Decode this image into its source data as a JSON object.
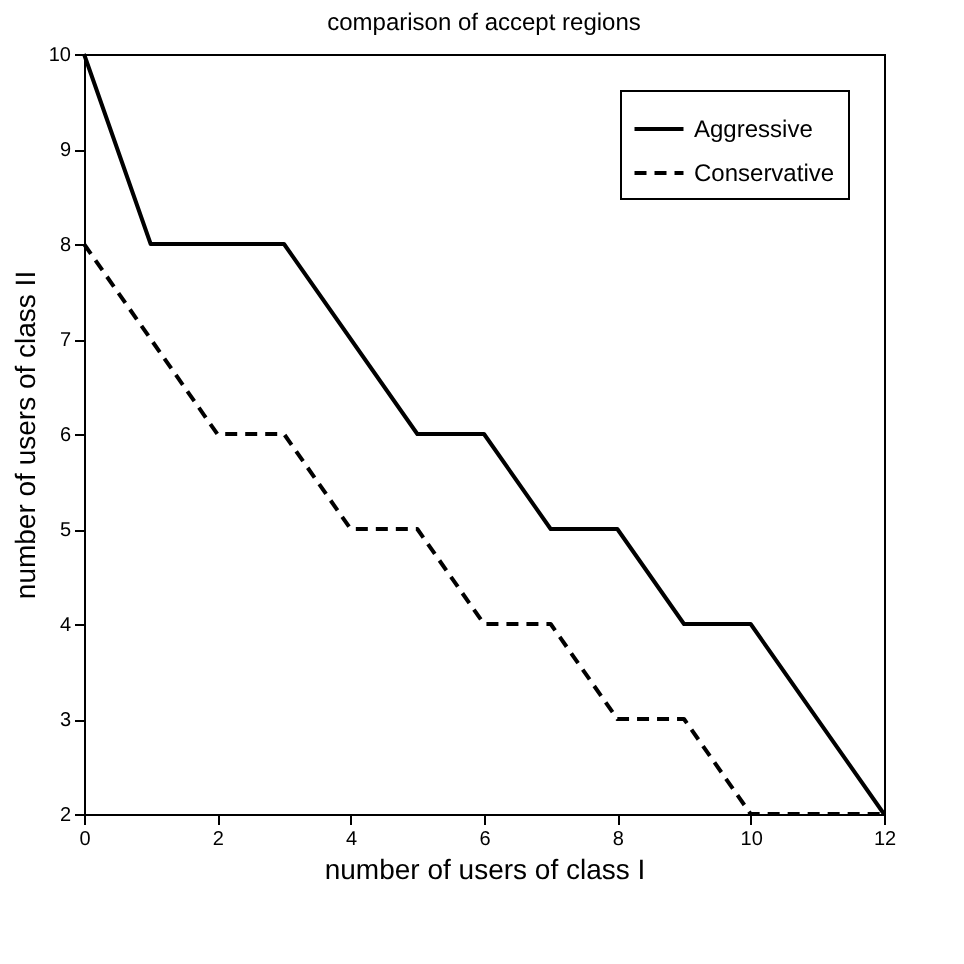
{
  "chart_data": {
    "type": "line",
    "title": "comparison of accept regions",
    "xlabel": "number of users of class I",
    "ylabel": "number of users of class II",
    "xlim": [
      0,
      12
    ],
    "xticks": [
      0,
      2,
      4,
      6,
      8,
      10,
      12
    ],
    "ylim": [
      2,
      10
    ],
    "yticks": [
      2,
      3,
      4,
      5,
      6,
      7,
      8,
      9,
      10
    ],
    "grid": false,
    "legend": "top right",
    "marker": "none",
    "series": [
      {
        "name": "Aggressive",
        "color": "#000000",
        "line_style": "solid",
        "x": [
          0,
          1,
          3,
          5,
          6,
          7,
          8,
          9,
          10,
          12
        ],
        "values": [
          10,
          8,
          8,
          6,
          6,
          5,
          5,
          4,
          4,
          2
        ]
      },
      {
        "name": "Conservative",
        "color": "#000000",
        "line_style": "dashed",
        "x": [
          0,
          2,
          3,
          4,
          5,
          6,
          7,
          8,
          9,
          10,
          12
        ],
        "values": [
          8,
          6,
          6,
          5,
          5,
          4,
          4,
          3,
          3,
          2,
          2
        ]
      }
    ]
  }
}
